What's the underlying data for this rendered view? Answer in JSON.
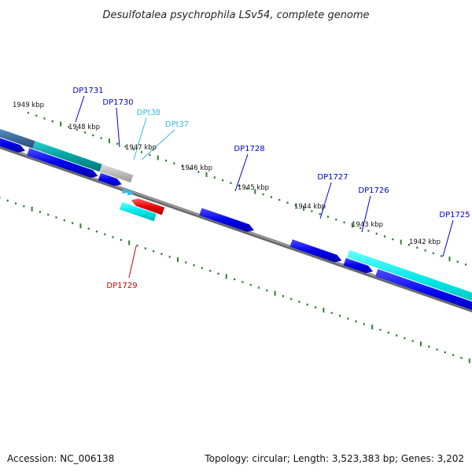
{
  "title": "Desulfotalea psychrophila LSv54, complete genome",
  "footer": {
    "accession": "Accession: NC_006138",
    "summary": "Topology: circular; Length: 3,523,383 bp; Genes: 3,202"
  },
  "scale_labels": [
    "1949 kbp",
    "1948 kbp",
    "1947 kbp",
    "1946 kbp",
    "1945 kbp",
    "1944 kbp",
    "1943 kbp",
    "1942 kbp"
  ],
  "gene_labels": [
    {
      "name": "DP1731",
      "color": "#0000cc"
    },
    {
      "name": "DP1730",
      "color": "#0000cc"
    },
    {
      "name": "DPt38",
      "color": "#33bbdd"
    },
    {
      "name": "DPt37",
      "color": "#33bbdd"
    },
    {
      "name": "DP1728",
      "color": "#0000cc"
    },
    {
      "name": "DP1727",
      "color": "#0000cc"
    },
    {
      "name": "DP1726",
      "color": "#0000cc"
    },
    {
      "name": "DP1725",
      "color": "#0000cc"
    },
    {
      "name": "DP1729",
      "color": "#cc0000"
    }
  ],
  "colors": {
    "backbone": "#808080",
    "cds": "#0000ee",
    "cds_light": "#4d4dff",
    "rna": "#00e5e5",
    "trna": "#33bbee",
    "reverse_cds": "#ee0000",
    "tick": "#2e7d32"
  }
}
